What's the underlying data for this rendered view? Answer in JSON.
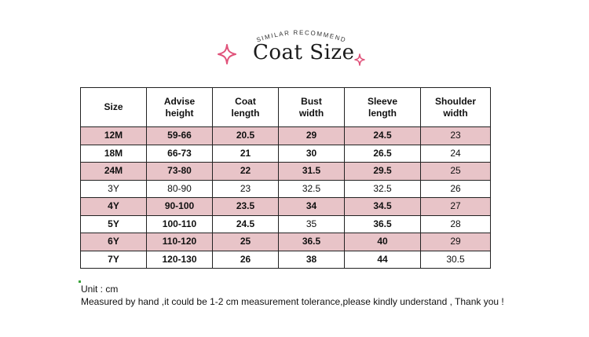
{
  "header": {
    "arc_text": "SIMILAR RECOMMEND",
    "title": "Coat Size",
    "accent_color": "#e0527a"
  },
  "table": {
    "columns": [
      {
        "line1": "Size",
        "line2": ""
      },
      {
        "line1": "Advise",
        "line2": "height"
      },
      {
        "line1": "Coat",
        "line2": "length"
      },
      {
        "line1": "Bust",
        "line2": "width"
      },
      {
        "line1": "Sleeve",
        "line2": "length"
      },
      {
        "line1": "Shoulder",
        "line2": "width"
      }
    ],
    "rows": [
      {
        "size": "12M",
        "height": "59-66",
        "coat_length": "20.5",
        "bust_width": "29",
        "sleeve_length": "24.5",
        "shoulder_width": "23"
      },
      {
        "size": "18M",
        "height": "66-73",
        "coat_length": "21",
        "bust_width": "30",
        "sleeve_length": "26.5",
        "shoulder_width": "24"
      },
      {
        "size": "24M",
        "height": "73-80",
        "coat_length": "22",
        "bust_width": "31.5",
        "sleeve_length": "29.5",
        "shoulder_width": "25"
      },
      {
        "size": "3Y",
        "height": "80-90",
        "coat_length": "23",
        "bust_width": "32.5",
        "sleeve_length": "32.5",
        "shoulder_width": "26"
      },
      {
        "size": "4Y",
        "height": "90-100",
        "coat_length": "23.5",
        "bust_width": "34",
        "sleeve_length": "34.5",
        "shoulder_width": "27"
      },
      {
        "size": "5Y",
        "height": "100-110",
        "coat_length": "24.5",
        "bust_width": "35",
        "sleeve_length": "36.5",
        "shoulder_width": "28"
      },
      {
        "size": "6Y",
        "height": "110-120",
        "coat_length": "25",
        "bust_width": "36.5",
        "sleeve_length": "40",
        "shoulder_width": "29"
      },
      {
        "size": "7Y",
        "height": "120-130",
        "coat_length": "26",
        "bust_width": "38",
        "sleeve_length": "44",
        "shoulder_width": "30.5"
      }
    ],
    "stripe_color": "#e8c4c8"
  },
  "notes": {
    "unit": "Unit : cm",
    "disclaimer": "Measured by hand ,it could be 1-2 cm measurement tolerance,please kindly understand , Thank you !"
  }
}
